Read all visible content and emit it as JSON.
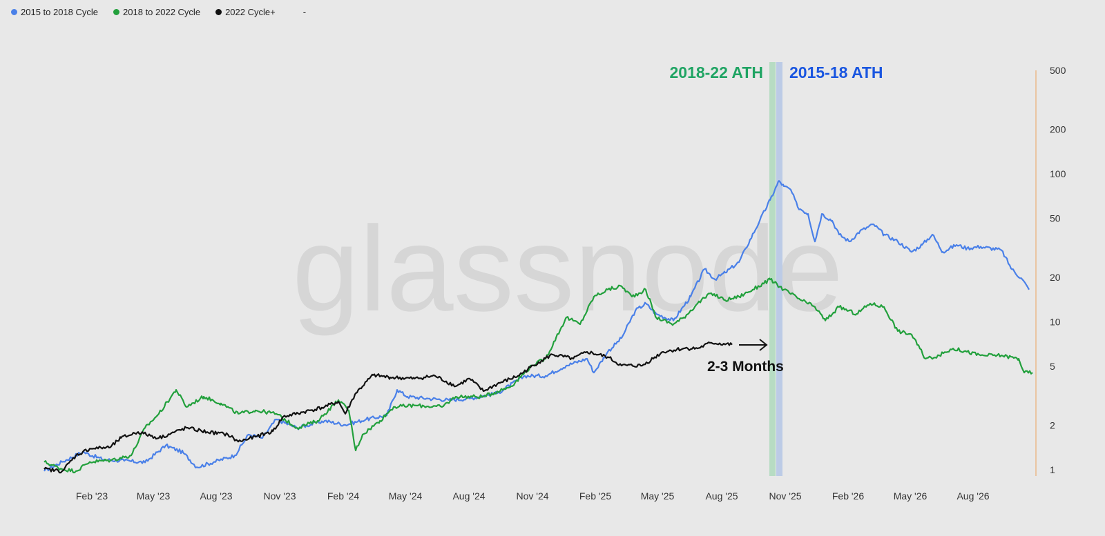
{
  "legend": [
    {
      "label": "2015 to 2018 Cycle",
      "color": "#4a80e8"
    },
    {
      "label": "2018 to 2022 Cycle",
      "color": "#22a03c"
    },
    {
      "label": "2022 Cycle+",
      "color": "#111111"
    },
    {
      "label": "-",
      "color": ""
    }
  ],
  "watermark": "glassnode",
  "chart_data": {
    "type": "line",
    "x_unit": "days since series start (approx. late Nov 2022)",
    "y_scale": "log",
    "ylim": [
      1,
      500
    ],
    "y_ticks": [
      1,
      2,
      5,
      10,
      20,
      50,
      100,
      200,
      500
    ],
    "y_tick_labels": [
      "1",
      "2",
      "5",
      "10",
      "20",
      "50",
      "100",
      "200",
      "500"
    ],
    "x_ticks": [
      69,
      158,
      249,
      341,
      433,
      523,
      615,
      707,
      798,
      888,
      981,
      1073,
      1164,
      1254,
      1345
    ],
    "x_tick_labels": [
      "Feb '23",
      "May '23",
      "Aug '23",
      "Nov '23",
      "Feb '24",
      "May '24",
      "Aug '24",
      "Nov '24",
      "Feb '25",
      "May '25",
      "Aug '25",
      "Nov '25",
      "Feb '26",
      "May '26",
      "Aug '26"
    ],
    "xlim": [
      0,
      1436
    ],
    "series": [
      {
        "name": "2015 to 2018 Cycle",
        "color": "#4a80e8",
        "points": [
          [
            0,
            0.98
          ],
          [
            26,
            1.13
          ],
          [
            56,
            1.32
          ],
          [
            86,
            1.17
          ],
          [
            116,
            1.15
          ],
          [
            146,
            1.12
          ],
          [
            176,
            1.46
          ],
          [
            201,
            1.31
          ],
          [
            221,
            1.04
          ],
          [
            246,
            1.13
          ],
          [
            276,
            1.25
          ],
          [
            296,
            1.73
          ],
          [
            316,
            1.64
          ],
          [
            336,
            2.19
          ],
          [
            366,
            1.92
          ],
          [
            406,
            2.14
          ],
          [
            436,
            2.01
          ],
          [
            466,
            2.19
          ],
          [
            496,
            2.33
          ],
          [
            511,
            3.47
          ],
          [
            526,
            3.12
          ],
          [
            556,
            3.03
          ],
          [
            586,
            2.96
          ],
          [
            616,
            3.03
          ],
          [
            656,
            3.29
          ],
          [
            696,
            4.31
          ],
          [
            726,
            4.31
          ],
          [
            756,
            5.06
          ],
          [
            786,
            5.63
          ],
          [
            796,
            4.54
          ],
          [
            816,
            6.27
          ],
          [
            836,
            7.77
          ],
          [
            856,
            11.9
          ],
          [
            871,
            13.3
          ],
          [
            886,
            11.3
          ],
          [
            911,
            10.2
          ],
          [
            936,
            14.8
          ],
          [
            956,
            22.7
          ],
          [
            971,
            19.4
          ],
          [
            986,
            21.5
          ],
          [
            1006,
            25.3
          ],
          [
            1016,
            31.4
          ],
          [
            1036,
            48.2
          ],
          [
            1051,
            66.5
          ],
          [
            1064,
            89.6
          ],
          [
            1071,
            82.4
          ],
          [
            1081,
            78.1
          ],
          [
            1091,
            59.7
          ],
          [
            1106,
            53.6
          ],
          [
            1116,
            34.9
          ],
          [
            1126,
            53.6
          ],
          [
            1141,
            48.2
          ],
          [
            1151,
            38.9
          ],
          [
            1166,
            34.9
          ],
          [
            1181,
            40.9
          ],
          [
            1201,
            45.6
          ],
          [
            1216,
            38.9
          ],
          [
            1236,
            34.9
          ],
          [
            1256,
            29.7
          ],
          [
            1271,
            33.1
          ],
          [
            1286,
            38.9
          ],
          [
            1301,
            29.7
          ],
          [
            1321,
            33.1
          ],
          [
            1336,
            31.4
          ],
          [
            1356,
            32.2
          ],
          [
            1386,
            30.5
          ],
          [
            1401,
            22.7
          ],
          [
            1416,
            19.4
          ],
          [
            1426,
            16.5
          ]
        ]
      },
      {
        "name": "2018 to 2022 Cycle",
        "color": "#22a03c",
        "points": [
          [
            0,
            1.13
          ],
          [
            26,
            1.01
          ],
          [
            46,
            0.98
          ],
          [
            66,
            1.13
          ],
          [
            96,
            1.16
          ],
          [
            126,
            1.25
          ],
          [
            146,
            1.92
          ],
          [
            166,
            2.39
          ],
          [
            191,
            3.47
          ],
          [
            206,
            2.66
          ],
          [
            231,
            3.12
          ],
          [
            256,
            2.81
          ],
          [
            281,
            2.39
          ],
          [
            306,
            2.52
          ],
          [
            336,
            2.39
          ],
          [
            366,
            1.92
          ],
          [
            396,
            2.14
          ],
          [
            426,
            2.96
          ],
          [
            441,
            2.52
          ],
          [
            451,
            1.35
          ],
          [
            461,
            1.73
          ],
          [
            486,
            2.14
          ],
          [
            506,
            2.66
          ],
          [
            536,
            2.72
          ],
          [
            576,
            2.66
          ],
          [
            596,
            3.12
          ],
          [
            636,
            3.12
          ],
          [
            676,
            3.67
          ],
          [
            706,
            5.06
          ],
          [
            726,
            5.63
          ],
          [
            741,
            7.77
          ],
          [
            756,
            10.7
          ],
          [
            776,
            9.63
          ],
          [
            796,
            14.8
          ],
          [
            816,
            16.5
          ],
          [
            836,
            17.4
          ],
          [
            851,
            14.8
          ],
          [
            871,
            16.5
          ],
          [
            886,
            10.7
          ],
          [
            911,
            9.63
          ],
          [
            926,
            10.7
          ],
          [
            946,
            13.3
          ],
          [
            966,
            15.6
          ],
          [
            986,
            14.0
          ],
          [
            1006,
            14.8
          ],
          [
            1026,
            16.5
          ],
          [
            1051,
            19.3
          ],
          [
            1071,
            16.5
          ],
          [
            1096,
            14.0
          ],
          [
            1116,
            12.6
          ],
          [
            1131,
            10.2
          ],
          [
            1151,
            12.6
          ],
          [
            1176,
            11.3
          ],
          [
            1196,
            13.3
          ],
          [
            1216,
            12.6
          ],
          [
            1236,
            8.65
          ],
          [
            1256,
            8.21
          ],
          [
            1276,
            5.63
          ],
          [
            1296,
            5.93
          ],
          [
            1316,
            6.61
          ],
          [
            1336,
            6.27
          ],
          [
            1356,
            5.93
          ],
          [
            1386,
            5.93
          ],
          [
            1411,
            5.63
          ],
          [
            1419,
            4.54
          ],
          [
            1431,
            4.54
          ]
        ]
      },
      {
        "name": "2022 Cycle+",
        "color": "#111111",
        "points": [
          [
            0,
            1.01
          ],
          [
            26,
            0.98
          ],
          [
            46,
            1.25
          ],
          [
            66,
            1.39
          ],
          [
            96,
            1.42
          ],
          [
            111,
            1.64
          ],
          [
            136,
            1.8
          ],
          [
            166,
            1.64
          ],
          [
            206,
            1.92
          ],
          [
            236,
            1.8
          ],
          [
            266,
            1.73
          ],
          [
            281,
            1.55
          ],
          [
            306,
            1.67
          ],
          [
            331,
            1.82
          ],
          [
            346,
            2.28
          ],
          [
            376,
            2.46
          ],
          [
            406,
            2.66
          ],
          [
            426,
            2.89
          ],
          [
            436,
            2.39
          ],
          [
            451,
            3.29
          ],
          [
            476,
            4.36
          ],
          [
            501,
            4.21
          ],
          [
            536,
            4.13
          ],
          [
            566,
            4.31
          ],
          [
            596,
            3.67
          ],
          [
            616,
            4.13
          ],
          [
            636,
            3.4
          ],
          [
            656,
            3.8
          ],
          [
            686,
            4.31
          ],
          [
            716,
            5.34
          ],
          [
            736,
            6.01
          ],
          [
            766,
            5.63
          ],
          [
            786,
            6.27
          ],
          [
            816,
            5.78
          ],
          [
            836,
            5.06
          ],
          [
            866,
            5.06
          ],
          [
            896,
            6.27
          ],
          [
            926,
            6.61
          ],
          [
            946,
            6.61
          ],
          [
            966,
            7.22
          ],
          [
            996,
            7.0
          ]
        ]
      }
    ],
    "annotations": [
      {
        "text": "2018-22 ATH",
        "color": "#1fa463",
        "band_x": [
          1050,
          1059
        ],
        "band_color": "#b7dcc3"
      },
      {
        "text": "2015-18 ATH",
        "color": "#1a56e0",
        "band_x": [
          1060,
          1069
        ],
        "band_color": "#bccbe6"
      },
      {
        "text": "2-3 Months",
        "color": "#111111",
        "arrow_x": [
          1006,
          1046
        ],
        "arrow_y": 7.0
      }
    ]
  }
}
